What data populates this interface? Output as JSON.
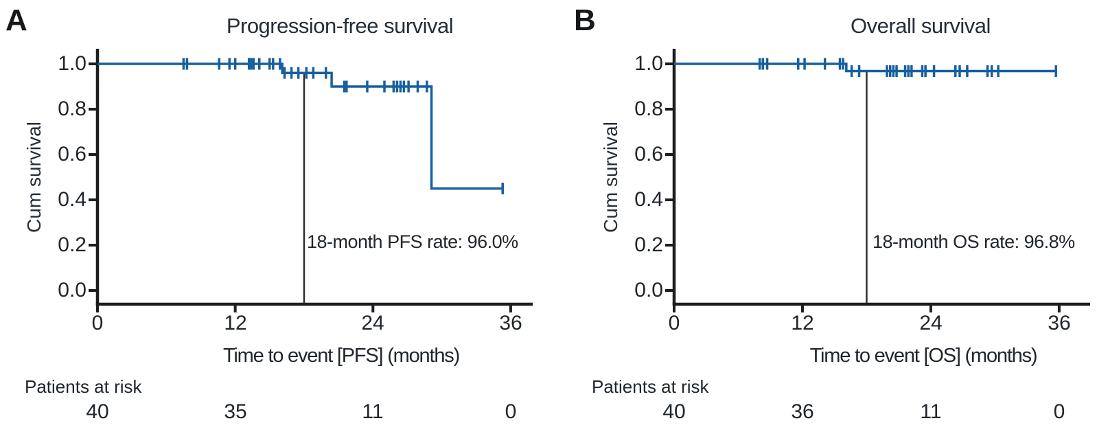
{
  "figure": {
    "panel_labels": [
      "A",
      "B"
    ],
    "colors": {
      "background": "#ffffff",
      "curve": "#175f9f",
      "axis": "#1c1d1f",
      "text": "#20262c",
      "reference_line": "#2e2e2e"
    }
  },
  "chart_data": [
    {
      "type": "line",
      "subtype": "kaplan-meier-step",
      "panel": "A",
      "title": "Progression-free survival",
      "xlabel": "Time to event [PFS] (months)",
      "ylabel": "Cum survival",
      "xlim": [
        0,
        37.5
      ],
      "ylim": [
        0.0,
        1.0
      ],
      "grid": false,
      "xticks": [
        0,
        12,
        24,
        36
      ],
      "yticks": [
        1.0,
        0.8,
        0.6,
        0.4,
        0.2,
        0.0
      ],
      "xtick_labels": [
        "0",
        "12",
        "24",
        "36"
      ],
      "ytick_labels": [
        "1.0",
        "0.8",
        "0.6",
        "0.4",
        "0.2",
        "0.0"
      ],
      "steps": [
        {
          "t": 0.0,
          "s": 1.0
        },
        {
          "t": 16.1,
          "s": 0.96
        },
        {
          "t": 20.4,
          "s": 0.9
        },
        {
          "t": 29.1,
          "s": 0.45
        }
      ],
      "end_time": 35.4,
      "censor_marks": [
        {
          "t": 7.5,
          "s": 1.0
        },
        {
          "t": 7.8,
          "s": 1.0
        },
        {
          "t": 10.6,
          "s": 1.0
        },
        {
          "t": 11.5,
          "s": 1.0
        },
        {
          "t": 12.0,
          "s": 1.0
        },
        {
          "t": 13.2,
          "s": 1.0
        },
        {
          "t": 13.4,
          "s": 1.0
        },
        {
          "t": 13.6,
          "s": 1.0
        },
        {
          "t": 14.1,
          "s": 1.0
        },
        {
          "t": 15.0,
          "s": 1.0
        },
        {
          "t": 15.3,
          "s": 1.0
        },
        {
          "t": 15.9,
          "s": 1.0
        },
        {
          "t": 16.3,
          "s": 0.96
        },
        {
          "t": 16.9,
          "s": 0.96
        },
        {
          "t": 17.5,
          "s": 0.96
        },
        {
          "t": 18.2,
          "s": 0.96
        },
        {
          "t": 18.8,
          "s": 0.96
        },
        {
          "t": 19.9,
          "s": 0.96
        },
        {
          "t": 21.5,
          "s": 0.9
        },
        {
          "t": 21.7,
          "s": 0.9
        },
        {
          "t": 23.5,
          "s": 0.9
        },
        {
          "t": 25.0,
          "s": 0.9
        },
        {
          "t": 25.8,
          "s": 0.9
        },
        {
          "t": 26.1,
          "s": 0.9
        },
        {
          "t": 26.4,
          "s": 0.9
        },
        {
          "t": 26.7,
          "s": 0.9
        },
        {
          "t": 27.1,
          "s": 0.9
        },
        {
          "t": 27.9,
          "s": 0.9
        },
        {
          "t": 28.7,
          "s": 0.9
        },
        {
          "t": 35.3,
          "s": 0.45
        }
      ],
      "reference_line": {
        "time": 18,
        "label": "18-month PFS rate: 96.0%"
      },
      "at_risk": {
        "label": "Patients at risk",
        "times": [
          0,
          12,
          24,
          36
        ],
        "counts": [
          40,
          35,
          11,
          0
        ]
      }
    },
    {
      "type": "line",
      "subtype": "kaplan-meier-step",
      "panel": "B",
      "title": "Overall survival",
      "xlabel": "Time to event [OS] (months)",
      "ylabel": "Cum survival",
      "xlim": [
        0,
        37.5
      ],
      "ylim": [
        0.0,
        1.0
      ],
      "grid": false,
      "xticks": [
        0,
        12,
        24,
        36
      ],
      "yticks": [
        1.0,
        0.8,
        0.6,
        0.4,
        0.2,
        0.0
      ],
      "xtick_labels": [
        "0",
        "12",
        "24",
        "36"
      ],
      "ytick_labels": [
        "1.0",
        "0.8",
        "0.6",
        "0.4",
        "0.2",
        "0.0"
      ],
      "steps": [
        {
          "t": 0.0,
          "s": 1.0
        },
        {
          "t": 16.1,
          "s": 0.968
        }
      ],
      "end_time": 35.8,
      "censor_marks": [
        {
          "t": 8.0,
          "s": 1.0
        },
        {
          "t": 8.3,
          "s": 1.0
        },
        {
          "t": 8.7,
          "s": 1.0
        },
        {
          "t": 11.6,
          "s": 1.0
        },
        {
          "t": 12.2,
          "s": 1.0
        },
        {
          "t": 14.1,
          "s": 1.0
        },
        {
          "t": 15.5,
          "s": 1.0
        },
        {
          "t": 15.8,
          "s": 1.0
        },
        {
          "t": 16.6,
          "s": 0.968
        },
        {
          "t": 17.3,
          "s": 0.968
        },
        {
          "t": 19.9,
          "s": 0.968
        },
        {
          "t": 20.2,
          "s": 0.968
        },
        {
          "t": 20.5,
          "s": 0.968
        },
        {
          "t": 20.8,
          "s": 0.968
        },
        {
          "t": 21.6,
          "s": 0.968
        },
        {
          "t": 21.9,
          "s": 0.968
        },
        {
          "t": 22.2,
          "s": 0.968
        },
        {
          "t": 23.2,
          "s": 0.968
        },
        {
          "t": 23.5,
          "s": 0.968
        },
        {
          "t": 24.3,
          "s": 0.968
        },
        {
          "t": 26.3,
          "s": 0.968
        },
        {
          "t": 26.7,
          "s": 0.968
        },
        {
          "t": 27.4,
          "s": 0.968
        },
        {
          "t": 29.3,
          "s": 0.968
        },
        {
          "t": 29.7,
          "s": 0.968
        },
        {
          "t": 30.3,
          "s": 0.968
        },
        {
          "t": 35.7,
          "s": 0.968
        }
      ],
      "reference_line": {
        "time": 18,
        "label": "18-month OS rate: 96.8%"
      },
      "at_risk": {
        "label": "Patients at risk",
        "times": [
          0,
          12,
          24,
          36
        ],
        "counts": [
          40,
          36,
          11,
          0
        ]
      }
    }
  ]
}
